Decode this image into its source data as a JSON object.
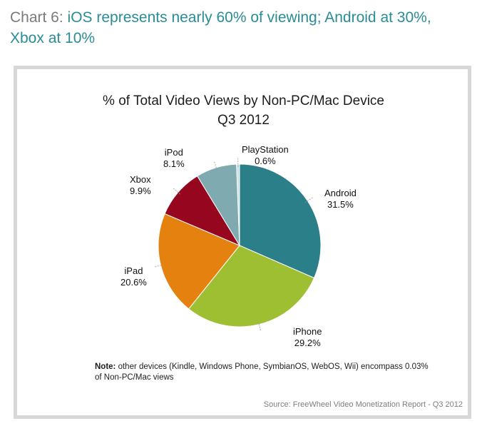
{
  "heading": {
    "prefix": "Chart 6: ",
    "highlight": "iOS represents nearly 60% of viewing; Android at 30%, Xbox at 10%"
  },
  "chart_data": {
    "type": "pie",
    "title_line1": "% of Total Video Views by Non-PC/Mac Device",
    "title_line2": "Q3 2012",
    "slices": [
      {
        "name": "Android",
        "value": 31.5,
        "label": "31.5%",
        "color": "#2b7f89"
      },
      {
        "name": "iPhone",
        "value": 29.2,
        "label": "29.2%",
        "color": "#9fbf33"
      },
      {
        "name": "iPad",
        "value": 20.6,
        "label": "20.6%",
        "color": "#e5820f"
      },
      {
        "name": "Xbox",
        "value": 9.9,
        "label": "9.9%",
        "color": "#97061f"
      },
      {
        "name": "iPod",
        "value": 8.1,
        "label": "8.1%",
        "color": "#7eaab0"
      },
      {
        "name": "PlayStation",
        "value": 0.6,
        "label": "0.6%",
        "color": "#c9dfe2"
      }
    ]
  },
  "note": {
    "bold": "Note:",
    "text": " other devices (Kindle, Windows Phone, SymbianOS, WebOS, Wii) encompass 0.03% of Non-PC/Mac views"
  },
  "source": "Source: FreeWheel Video Monetization Report - Q3 2012"
}
